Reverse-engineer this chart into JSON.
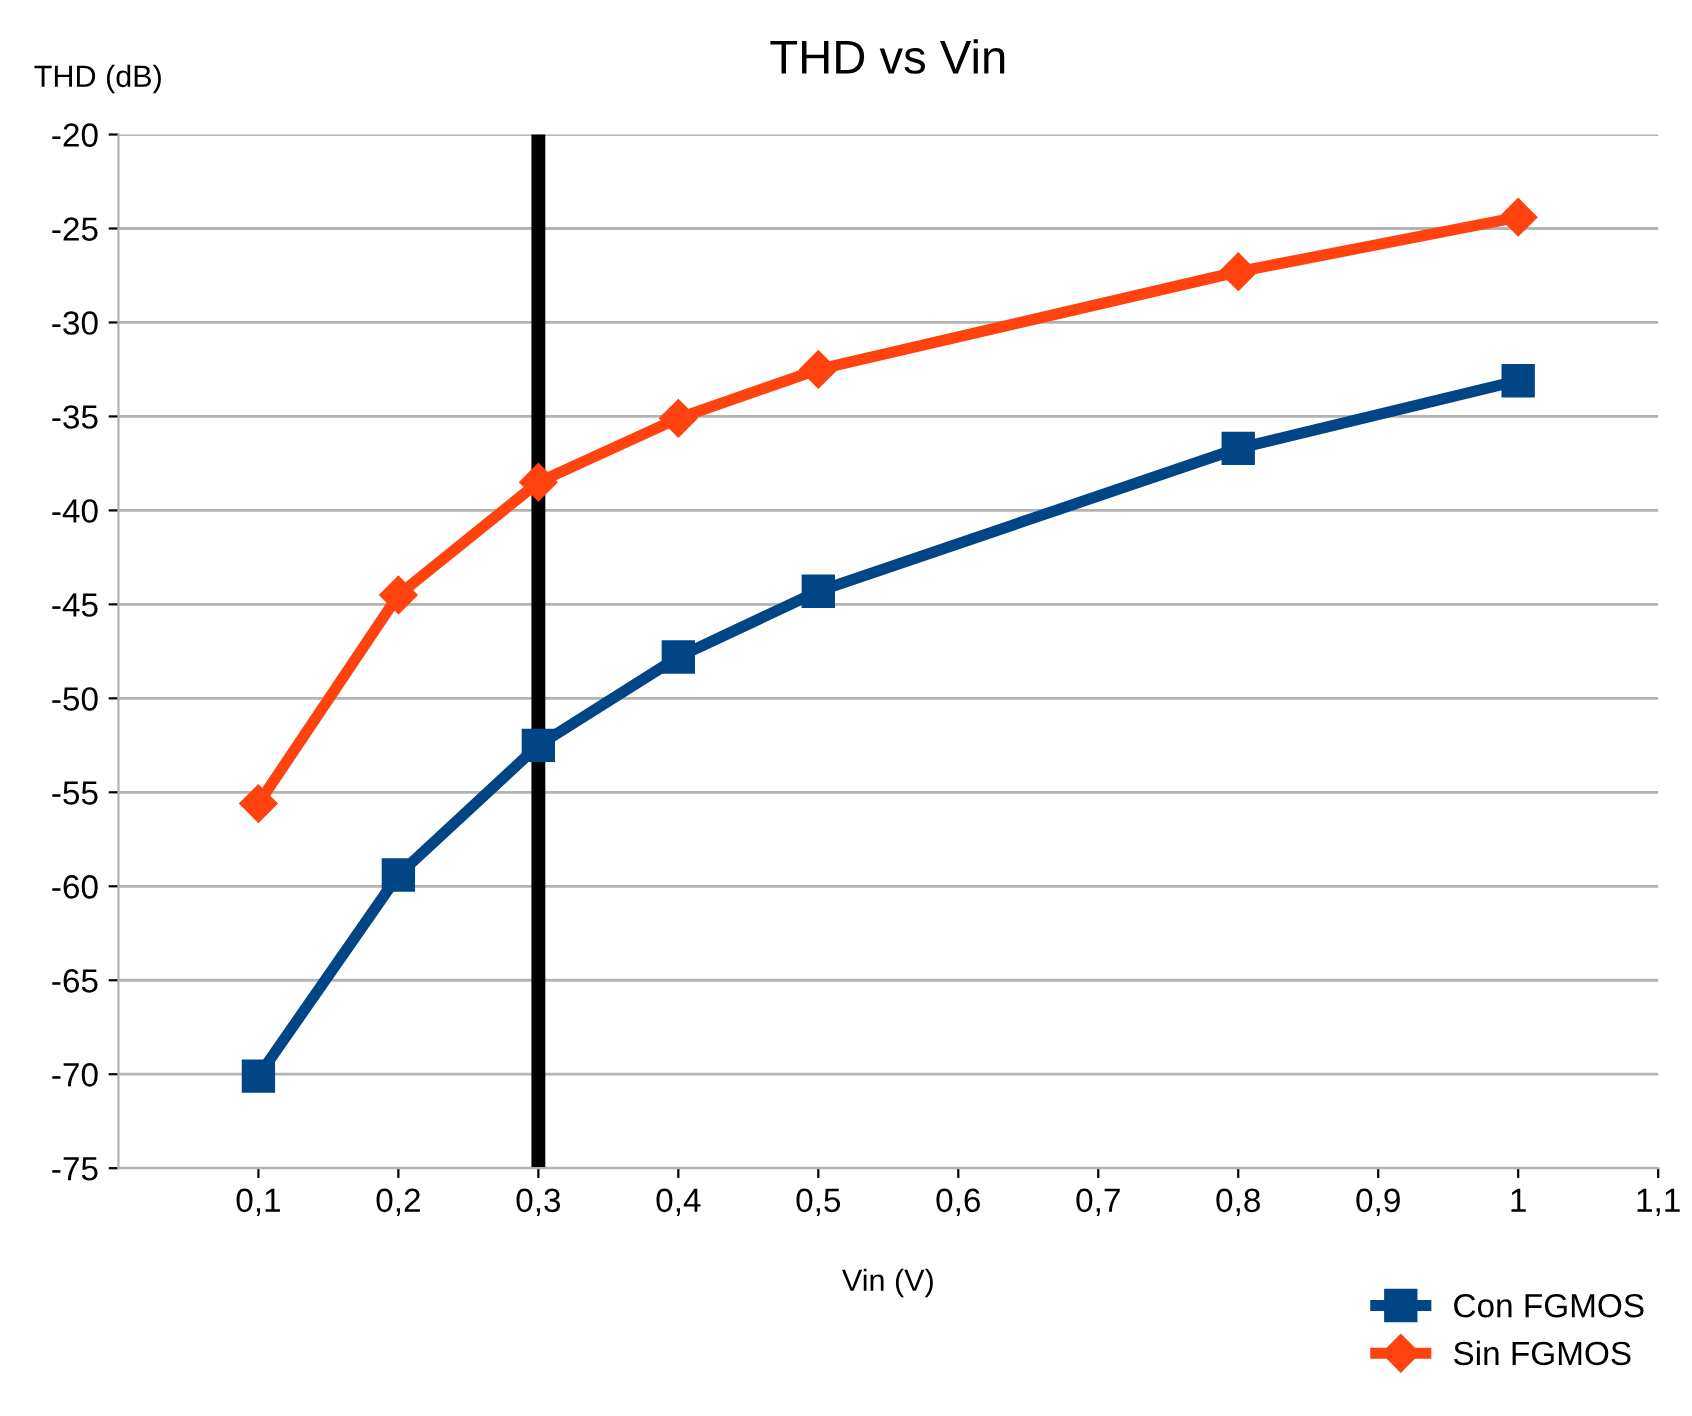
{
  "chart_data": {
    "type": "line",
    "title": "THD vs Vin",
    "xlabel": "Vin (V)",
    "ylabel": "THD (dB)",
    "x": [
      0.1,
      0.2,
      0.3,
      0.4,
      0.5,
      0.8,
      1.0
    ],
    "series": [
      {
        "name": "Con FGMOS",
        "color": "#004586",
        "marker": "square",
        "values": [
          -70.1,
          -59.4,
          -52.5,
          -47.8,
          -44.3,
          -36.7,
          -33.1
        ]
      },
      {
        "name": "Sin FGMOS",
        "color": "#ff420e",
        "marker": "diamond",
        "values": [
          -55.6,
          -44.5,
          -38.5,
          -35.1,
          -32.5,
          -27.3,
          -24.4
        ]
      }
    ],
    "xlim": [
      0,
      1.1
    ],
    "xticks": [
      {
        "value": 0.1,
        "label": "0,1"
      },
      {
        "value": 0.2,
        "label": "0,2"
      },
      {
        "value": 0.3,
        "label": "0,3"
      },
      {
        "value": 0.4,
        "label": "0,4"
      },
      {
        "value": 0.5,
        "label": "0,5"
      },
      {
        "value": 0.6,
        "label": "0,6"
      },
      {
        "value": 0.7,
        "label": "0,7"
      },
      {
        "value": 0.8,
        "label": "0,8"
      },
      {
        "value": 0.9,
        "label": "0,9"
      },
      {
        "value": 1,
        "label": "1"
      },
      {
        "value": 1.1,
        "label": "1,1"
      }
    ],
    "ylim": [
      -75,
      -20
    ],
    "yticks": [
      -75,
      -70,
      -65,
      -60,
      -55,
      -50,
      -45,
      -40,
      -35,
      -30,
      -25,
      -20
    ],
    "ref_lines": [
      {
        "axis": "x",
        "value": 0.3,
        "color": "#000000"
      }
    ],
    "grid": "y",
    "legend": "bottom right",
    "line_style": "solid"
  }
}
